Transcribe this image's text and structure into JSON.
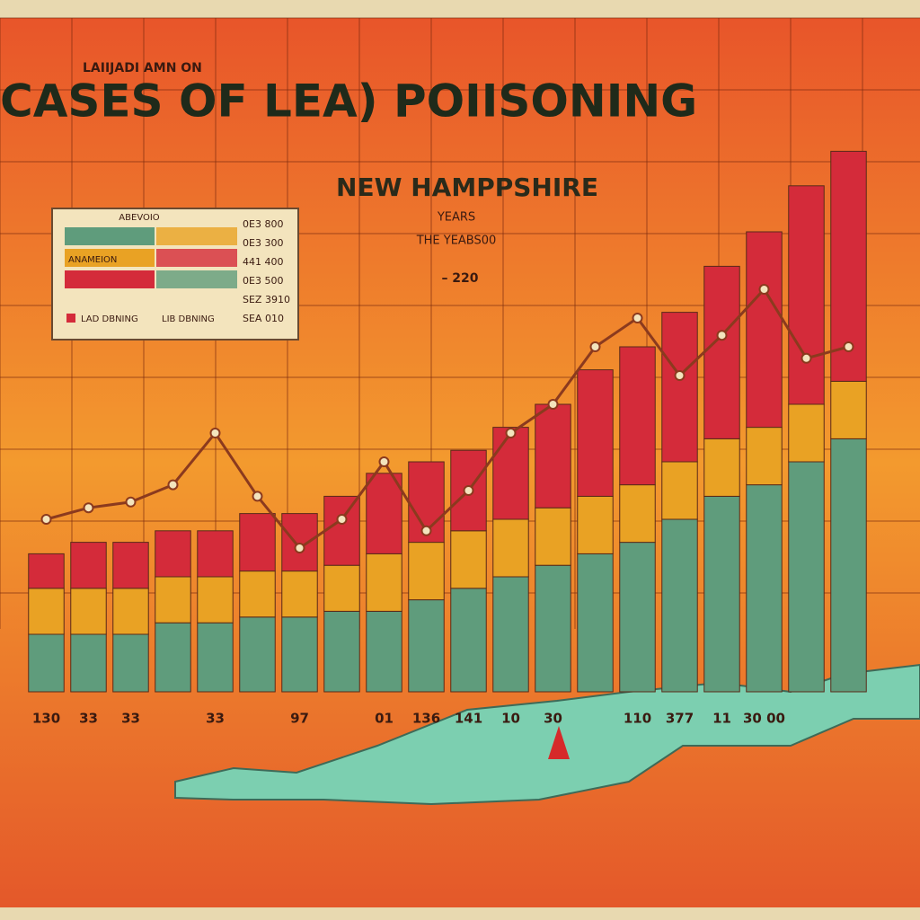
{
  "chart_data": {
    "type": "stacked-bar",
    "kicker": "LAIIJADI AMN ON",
    "title": "CASES OF LEA) POIISONING",
    "subtitle": "NEW HAMPPSHIRE",
    "annotations": [
      "YEARS",
      "THE YEABS00",
      "– 220"
    ],
    "legend": {
      "title": "ABEVOIO",
      "values": [
        "0E3 800",
        "0E3 300",
        "441 400",
        "0E3 500",
        "SEZ 3910",
        "SEA 010"
      ]
    },
    "categories": [
      "130",
      "33",
      "33",
      null,
      "33",
      null,
      "97",
      null,
      "01",
      "136",
      "141",
      "10",
      "30",
      null,
      "110",
      "377",
      "11",
      "30 00",
      null,
      null
    ],
    "ylim": [
      0,
      100
    ],
    "series": [
      {
        "name": "LIB DBNING",
        "color": "#5f9c7c",
        "values": [
          10,
          10,
          10,
          12,
          12,
          13,
          13,
          14,
          14,
          16,
          18,
          20,
          22,
          24,
          26,
          30,
          34,
          36,
          40,
          44
        ]
      },
      {
        "name": "ANAMEION",
        "color": "#e9a224",
        "values": [
          8,
          8,
          8,
          8,
          8,
          8,
          8,
          8,
          10,
          10,
          10,
          10,
          10,
          10,
          10,
          10,
          10,
          10,
          10,
          10
        ]
      },
      {
        "name": "LAD DBNING",
        "color": "#d42b3a",
        "values": [
          6,
          8,
          8,
          8,
          8,
          10,
          10,
          12,
          14,
          14,
          14,
          16,
          18,
          22,
          24,
          26,
          30,
          34,
          38,
          40
        ]
      }
    ],
    "line": {
      "color": "#8b3a1e",
      "values": [
        30,
        32,
        33,
        36,
        45,
        34,
        25,
        30,
        40,
        28,
        35,
        45,
        50,
        60,
        65,
        55,
        62,
        70,
        58,
        60
      ]
    }
  }
}
